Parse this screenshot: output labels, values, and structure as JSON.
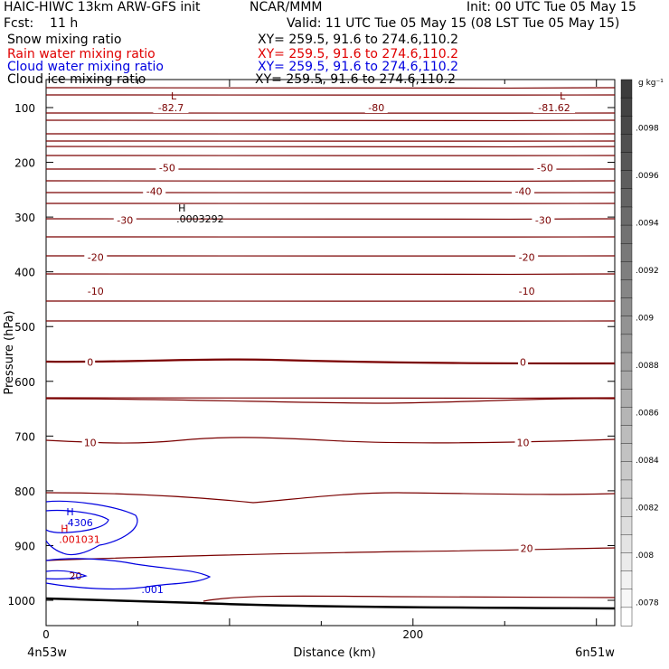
{
  "header": {
    "model": "HAIC-HIWC 13km ARW-GFS init",
    "org": "NCAR/MMM",
    "init": "Init: 00 UTC Tue 05 May 15",
    "fcst": "Fcst:    11 h",
    "valid": "Valid: 11 UTC Tue 05 May 15 (08 LST Tue 05 May 15)"
  },
  "fields": [
    {
      "name": "Snow mixing ratio",
      "xy": "XY= 259.5, 91.6 to 274.6,110.2",
      "color": "#000000"
    },
    {
      "name": "Rain water mixing ratio",
      "xy": "XY= 259.5, 91.6 to 274.6,110.2",
      "color": "#e00000"
    },
    {
      "name": "Cloud water mixing ratio",
      "xy": "XY= 259.5, 91.6 to 274.6,110.2",
      "color": "#0000e0"
    },
    {
      "name": "Cloud ice mixing ratio",
      "xy": "XY= 259.5, 91.6 to 274.6,110.2",
      "color": "#000000"
    }
  ],
  "colorbar": {
    "unit": "g kg⁻¹",
    "ticks": [
      ".0098",
      ".0096",
      ".0094",
      ".0092",
      ".009",
      ".0088",
      ".0086",
      ".0084",
      ".0082",
      ".008",
      ".0078"
    ],
    "values": [
      0.0098,
      0.0096,
      0.0094,
      0.0092,
      0.009,
      0.0088,
      0.0086,
      0.0084,
      0.0082,
      0.008,
      0.0078
    ],
    "range": [
      0.0077,
      0.01
    ]
  },
  "chart_data": {
    "type": "contour",
    "xlabel": "Distance (km)",
    "ylabel": "Pressure (hPa)",
    "xlim": [
      0,
      310
    ],
    "ylim": [
      1050,
      70
    ],
    "xticks": [
      "0",
      "200"
    ],
    "xtick_values": [
      0,
      200
    ],
    "yticks": [
      "100",
      "200",
      "300",
      "400",
      "500",
      "600",
      "700",
      "800",
      "900",
      "1000"
    ],
    "ytick_values": [
      100,
      200,
      300,
      400,
      500,
      600,
      700,
      800,
      900,
      1000
    ],
    "x_endpoints": {
      "left": "4n53w",
      "right": "6n51w"
    },
    "temperature_contours": {
      "color": "#7a0000",
      "levels": [
        {
          "label": "-82.7",
          "x": 68,
          "p": 100
        },
        {
          "label": "-80",
          "x": 180,
          "p": 100
        },
        {
          "label": "-81.62",
          "x": 277,
          "p": 100
        },
        {
          "label": "-50",
          "x": 66,
          "p": 210
        },
        {
          "label": "-50",
          "x": 272,
          "p": 210
        },
        {
          "label": "-40",
          "x": 59,
          "p": 253
        },
        {
          "label": "-40",
          "x": 260,
          "p": 253
        },
        {
          "label": "-30",
          "x": 43,
          "p": 306
        },
        {
          "label": "-30",
          "x": 271,
          "p": 306
        },
        {
          "label": "-20",
          "x": 27,
          "p": 373
        },
        {
          "label": "-20",
          "x": 262,
          "p": 373
        },
        {
          "label": "-10",
          "x": 27,
          "p": 435
        },
        {
          "label": "-10",
          "x": 262,
          "p": 435
        },
        {
          "label": "0",
          "x": 24,
          "p": 565
        },
        {
          "label": "0",
          "x": 260,
          "p": 565
        },
        {
          "label": "10",
          "x": 24,
          "p": 712
        },
        {
          "label": "10",
          "x": 260,
          "p": 712
        },
        {
          "label": "20",
          "x": 16,
          "p": 955
        },
        {
          "label": "20",
          "x": 262,
          "p": 905
        }
      ]
    },
    "extrema": [
      {
        "label": "L",
        "x": 68,
        "p": 85,
        "color": "#7a0000"
      },
      {
        "label": "L",
        "x": 280,
        "p": 85,
        "color": "#7a0000"
      },
      {
        "label": "H",
        "x": 72,
        "p": 290,
        "value": ".0003292",
        "color": "#000000"
      },
      {
        "label": "H",
        "x": 11,
        "p": 845,
        "value": ".4306",
        "color": "#0000e0"
      },
      {
        "label": "H",
        "x": 8,
        "p": 875,
        "value": ".001031",
        "color": "#e00000"
      }
    ],
    "cloud_water_label": {
      "label": ".001",
      "x": 58,
      "p": 980,
      "color": "#0000e0"
    }
  }
}
